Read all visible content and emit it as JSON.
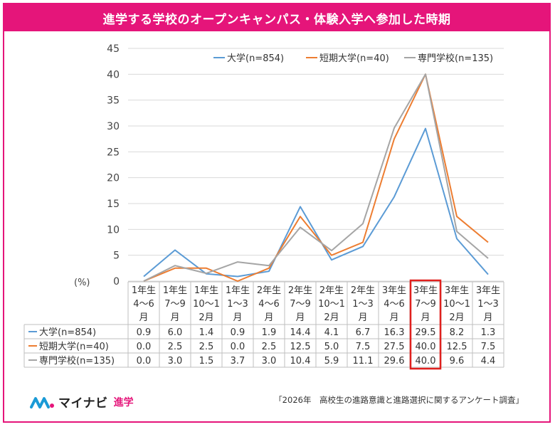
{
  "title": "進学する学校のオープンキャンパス・体験入学へ参加した時期",
  "source": "「2026年　高校生の進路意識と進路選択に関するアンケート調査」",
  "logo": {
    "name": "マイナビ",
    "accent": "進学"
  },
  "colors": {
    "brand": "#e5157a",
    "highlight": "#e0201e"
  },
  "chart_data": {
    "type": "line",
    "unit_label": "(%)",
    "ylim": [
      0,
      45
    ],
    "yticks": [
      0,
      5,
      10,
      15,
      20,
      25,
      30,
      35,
      40,
      45
    ],
    "grid": true,
    "legend_position": "top-right",
    "categories": [
      [
        "1年生",
        "4～6",
        "月"
      ],
      [
        "1年生",
        "7～9",
        "月"
      ],
      [
        "1年生",
        "10～1",
        "2月"
      ],
      [
        "1年生",
        "1～3",
        "月"
      ],
      [
        "2年生",
        "4～6",
        "月"
      ],
      [
        "2年生",
        "7～9",
        "月"
      ],
      [
        "2年生",
        "10～1",
        "2月"
      ],
      [
        "2年生",
        "1～3",
        "月"
      ],
      [
        "3年生",
        "4～6",
        "月"
      ],
      [
        "3年生",
        "7～9",
        "月"
      ],
      [
        "3年生",
        "10～1",
        "2月"
      ],
      [
        "3年生",
        "1～3",
        "月"
      ]
    ],
    "highlight_index": 9,
    "series": [
      {
        "name": "大学(n=854)",
        "color": "#5b9bd5",
        "values": [
          0.9,
          6.0,
          1.4,
          0.9,
          1.9,
          14.4,
          4.1,
          6.7,
          16.3,
          29.5,
          8.2,
          1.3
        ],
        "labels": [
          "0.9",
          "6.0",
          "1.4",
          "0.9",
          "1.9",
          "14.4",
          "4.1",
          "6.7",
          "16.3",
          "29.5",
          "8.2",
          "1.3"
        ]
      },
      {
        "name": "短期大学(n=40)",
        "color": "#ed7d31",
        "values": [
          0.0,
          2.5,
          2.5,
          0.0,
          2.5,
          12.5,
          5.0,
          7.5,
          27.5,
          40.0,
          12.5,
          7.5
        ],
        "labels": [
          "0.0",
          "2.5",
          "2.5",
          "0.0",
          "2.5",
          "12.5",
          "5.0",
          "7.5",
          "27.5",
          "40.0",
          "12.5",
          "7.5"
        ]
      },
      {
        "name": "専門学校(n=135)",
        "color": "#a5a5a5",
        "values": [
          0.0,
          3.0,
          1.5,
          3.7,
          3.0,
          10.4,
          5.9,
          11.1,
          29.6,
          40.0,
          9.6,
          4.4
        ],
        "labels": [
          "0.0",
          "3.0",
          "1.5",
          "3.7",
          "3.0",
          "10.4",
          "5.9",
          "11.1",
          "29.6",
          "40.0",
          "9.6",
          "4.4"
        ]
      }
    ]
  }
}
